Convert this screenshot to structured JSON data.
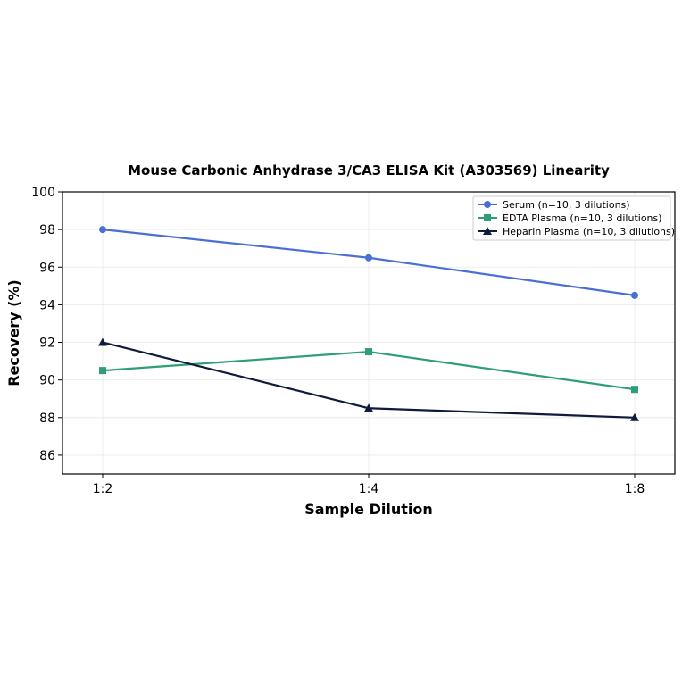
{
  "chart_data": {
    "type": "line",
    "title": "Mouse Carbonic Anhydrase 3/CA3 ELISA Kit (A303569) Linearity",
    "xlabel": "Sample Dilution",
    "ylabel": "Recovery (%)",
    "categories": [
      "1:2",
      "1:4",
      "1:8"
    ],
    "ylim": [
      85,
      100
    ],
    "yticks": [
      86,
      88,
      90,
      92,
      94,
      96,
      98,
      100
    ],
    "grid": true,
    "legend_position": "top-right",
    "series": [
      {
        "name": "Serum (n=10, 3 dilutions)",
        "values": [
          98,
          96.5,
          94.5
        ],
        "color": "#4a6fd4",
        "marker": "circle"
      },
      {
        "name": "EDTA Plasma (n=10, 3 dilutions)",
        "values": [
          90.5,
          91.5,
          89.5
        ],
        "color": "#2e9e78",
        "marker": "square"
      },
      {
        "name": "Heparin Plasma (n=10, 3 dilutions)",
        "values": [
          92,
          88.5,
          88
        ],
        "color": "#0f1b3d",
        "marker": "triangle"
      }
    ]
  }
}
